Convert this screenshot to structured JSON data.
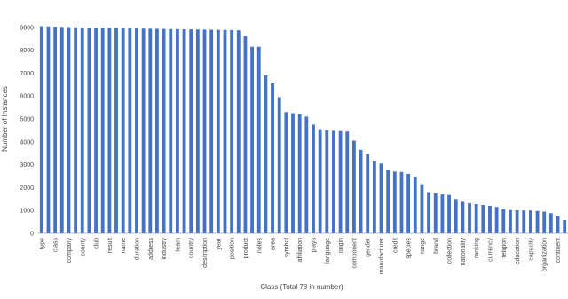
{
  "chart_data": {
    "type": "bar",
    "y_label": "Number of Instances",
    "x_label": "Class (Total 78 in number)",
    "categories": [
      "type",
      null,
      "class",
      null,
      "company",
      null,
      "county",
      null,
      "club",
      null,
      "result",
      null,
      "name",
      null,
      "duration",
      null,
      "address",
      null,
      "industry",
      null,
      "team",
      null,
      "country",
      null,
      "description",
      null,
      "year",
      null,
      "position",
      null,
      "product",
      null,
      "notes",
      null,
      "area",
      null,
      "symbol",
      null,
      "affiliation",
      null,
      "plays",
      null,
      "language",
      null,
      "origin",
      null,
      "component",
      null,
      "gender",
      null,
      "manufacturer",
      null,
      "credit",
      null,
      "species",
      null,
      "range",
      null,
      "brand",
      null,
      "collection",
      null,
      "nationality",
      null,
      "ranking",
      null,
      "currency",
      null,
      "religion",
      null,
      "education",
      null,
      "capacity",
      null,
      "organization",
      null,
      "continent",
      null
    ],
    "values": [
      9050,
      9040,
      9030,
      9020,
      9010,
      9000,
      8990,
      8985,
      8980,
      8975,
      8970,
      8965,
      8960,
      8955,
      8950,
      8945,
      8940,
      8935,
      8930,
      8925,
      8920,
      8915,
      8910,
      8905,
      8900,
      8895,
      8890,
      8885,
      8880,
      8870,
      8600,
      8150,
      8150,
      6900,
      6550,
      5950,
      5300,
      5250,
      5200,
      5100,
      4750,
      4550,
      4500,
      4480,
      4470,
      4450,
      4050,
      3650,
      3450,
      3150,
      3050,
      2750,
      2700,
      2680,
      2600,
      2450,
      2150,
      1800,
      1750,
      1700,
      1680,
      1500,
      1380,
      1320,
      1280,
      1240,
      1200,
      1150,
      1050,
      1020,
      1010,
      1000,
      1000,
      980,
      950,
      880,
      740,
      580
    ],
    "color": "#4472c4",
    "ylim": [
      0,
      10000
    ],
    "yticks": [
      0,
      1000,
      2000,
      3000,
      4000,
      5000,
      6000,
      7000,
      8000,
      9000
    ],
    "grid": false
  }
}
